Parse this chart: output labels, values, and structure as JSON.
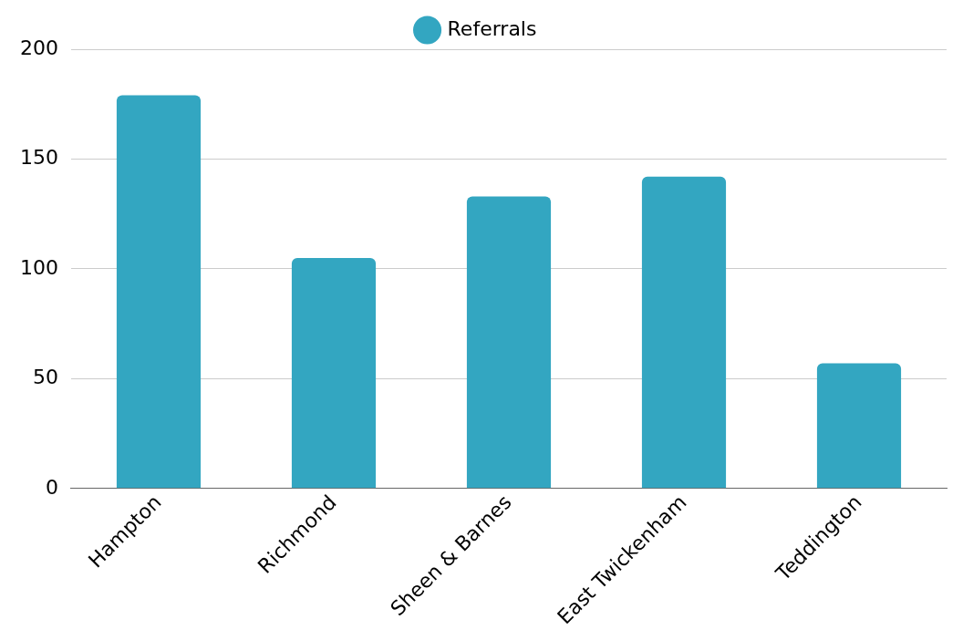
{
  "chart_data": {
    "type": "bar",
    "categories": [
      "Hampton",
      "Richmond",
      "Sheen & Barnes",
      "East Twickenham",
      "Teddington"
    ],
    "series": [
      {
        "name": "Referrals",
        "color": "#33a6c1",
        "values": [
          179,
          105,
          133,
          142,
          57
        ]
      }
    ],
    "ylim": [
      0,
      200
    ],
    "yticks": [
      0,
      50,
      100,
      150,
      200
    ],
    "grid": "y",
    "legend": "top"
  }
}
